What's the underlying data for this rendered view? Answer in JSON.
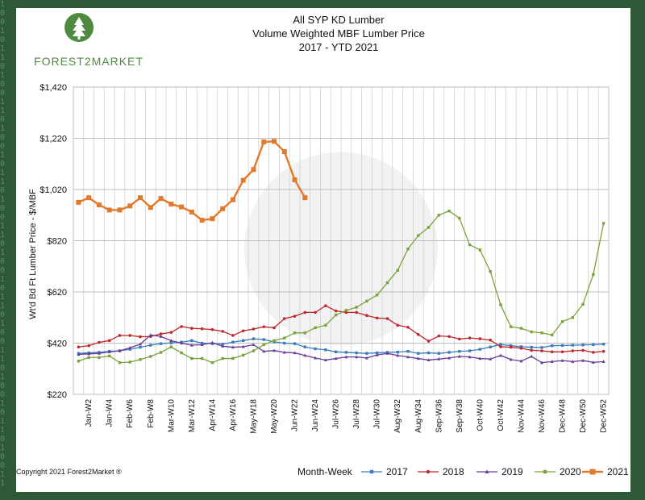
{
  "logo": {
    "text": "FOREST2MARKET"
  },
  "copyright": "Copyright 2021 Forest2Market ®",
  "chart_data": {
    "type": "line",
    "title": "All SYP KD Lumber",
    "subtitle": "Volume Weighted MBF Lumber Price",
    "subtitle2": "2017 - YTD 2021",
    "ylabel": "Wt'd Bd Ft Lumber Price - $/MBF",
    "xlabel": "Month-Week",
    "ylim": [
      220,
      1420
    ],
    "yticks": [
      "$220",
      "$420",
      "$620",
      "$820",
      "$1,020",
      "$1,220",
      "$1,420"
    ],
    "ytick_values": [
      220,
      420,
      620,
      820,
      1020,
      1220,
      1420
    ],
    "x_count": 52,
    "xtick_labels": [
      "Jan-W2",
      "Jan-W4",
      "Feb-W6",
      "Feb-W8",
      "Mar-W10",
      "Mar-W12",
      "Apr-W14",
      "Apr-W16",
      "May-W18",
      "May-W20",
      "Jun-W22",
      "Jun-W24",
      "Jul-W26",
      "Jul-W28",
      "Jul-W30",
      "Aug-W32",
      "Aug-W34",
      "Sep-W36",
      "Sep-W38",
      "Oct-W40",
      "Oct-W42",
      "Nov-W44",
      "Nov-W46",
      "Dec-W48",
      "Dec-W50",
      "Dec-W52"
    ],
    "grid": true,
    "legend_position": "bottom",
    "series": [
      {
        "name": "2017",
        "color": "#3b7dbd",
        "marker": "square",
        "values": [
          380,
          382,
          384,
          388,
          390,
          396,
          404,
          412,
          418,
          421,
          424,
          430,
          420,
          418,
          416,
          424,
          430,
          437,
          434,
          425,
          420,
          418,
          405,
          398,
          394,
          386,
          384,
          382,
          380,
          382,
          384,
          385,
          388,
          380,
          382,
          380,
          384,
          388,
          390,
          396,
          405,
          415,
          410,
          406,
          404,
          403,
          410,
          411,
          412,
          413,
          414,
          416
        ]
      },
      {
        "name": "2018",
        "color": "#c0262b",
        "marker": "circle",
        "values": [
          405,
          410,
          423,
          430,
          450,
          450,
          445,
          446,
          456,
          462,
          485,
          478,
          476,
          473,
          466,
          450,
          468,
          475,
          484,
          480,
          516,
          525,
          540,
          540,
          566,
          546,
          540,
          540,
          528,
          518,
          516,
          490,
          482,
          454,
          428,
          448,
          446,
          436,
          440,
          437,
          432,
          406,
          404,
          400,
          392,
          390,
          386,
          386,
          390,
          392,
          384,
          388
        ]
      },
      {
        "name": "2019",
        "color": "#6a3d99",
        "marker": "triangle",
        "values": [
          376,
          378,
          380,
          386,
          390,
          402,
          416,
          452,
          446,
          430,
          420,
          412,
          414,
          422,
          408,
          404,
          406,
          414,
          388,
          391,
          384,
          382,
          372,
          362,
          354,
          360,
          366,
          366,
          362,
          374,
          380,
          372,
          366,
          360,
          354,
          358,
          362,
          368,
          366,
          360,
          358,
          372,
          356,
          350,
          368,
          344,
          348,
          352,
          348,
          352,
          345,
          348
        ]
      },
      {
        "name": "2020",
        "color": "#7aa33a",
        "marker": "square",
        "values": [
          350,
          364,
          364,
          370,
          344,
          346,
          356,
          368,
          384,
          405,
          382,
          360,
          360,
          344,
          360,
          360,
          373,
          390,
          414,
          430,
          440,
          460,
          460,
          480,
          490,
          530,
          548,
          560,
          584,
          608,
          656,
          704,
          788,
          840,
          872,
          920,
          936,
          908,
          804,
          784,
          700,
          570,
          484,
          478,
          464,
          460,
          452,
          504,
          520,
          572,
          688,
          888
        ]
      },
      {
        "name": "2021",
        "color": "#e3792b",
        "marker": "square",
        "values": [
          970,
          988,
          960,
          940,
          940,
          956,
          988,
          950,
          985,
          963,
          952,
          932,
          900,
          906,
          945,
          980,
          1056,
          1098,
          1206,
          1208,
          1168,
          1058,
          988
        ]
      }
    ]
  }
}
